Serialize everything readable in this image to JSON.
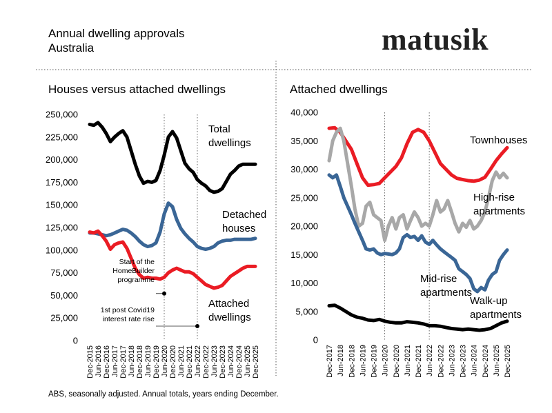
{
  "header": {
    "title_line1": "Annual dwelling approvals",
    "title_line2": "Australia",
    "brand": "matusik"
  },
  "footer": {
    "source": "ABS, seasonally adjusted.  Annual totals, years ending December."
  },
  "colors": {
    "black": "#000000",
    "blue": "#3a6696",
    "red": "#ea1c24",
    "grey": "#a8a8a8"
  },
  "chart_data": [
    {
      "type": "line",
      "title": "Houses versus attached dwellings",
      "ylim": [
        0,
        250000
      ],
      "yticks": [
        "0",
        "25,000",
        "50,000",
        "75,000",
        "100,000",
        "125,000",
        "150,000",
        "175,000",
        "200,000",
        "225,000",
        "250,000"
      ],
      "xlim": [
        2015.92,
        2025.92
      ],
      "xticks": [
        "Dec-2015",
        "Jun-2016",
        "Dec-2016",
        "Jun-2017",
        "Dec-2017",
        "Jun-2018",
        "Dec-2018",
        "Jun-2019",
        "Dec-2019",
        "Jun-2020",
        "Dec-2020",
        "Jun-2021",
        "Dec-2021",
        "Jun-2022",
        "Dec-2022",
        "Jun-2023",
        "Dec-2023",
        "Jun-2024",
        "Dec-2024",
        "Jun-2025",
        "Dec-2025"
      ],
      "vlines": [
        2020.42,
        2022.42
      ],
      "series": [
        {
          "name_lines": [
            "Total",
            "dwellings"
          ],
          "color": "#000000",
          "x": [
            2015.92,
            2016.17,
            2016.42,
            2016.67,
            2016.92,
            2017.17,
            2017.42,
            2017.67,
            2017.92,
            2018.17,
            2018.42,
            2018.67,
            2018.92,
            2019.17,
            2019.42,
            2019.67,
            2019.92,
            2020.17,
            2020.42,
            2020.67,
            2020.92,
            2021.17,
            2021.42,
            2021.67,
            2021.92,
            2022.17,
            2022.42,
            2022.67,
            2022.92,
            2023.17,
            2023.42,
            2023.67,
            2023.92,
            2024.17,
            2024.42,
            2024.67,
            2024.92,
            2025.17,
            2025.42,
            2025.67,
            2025.92
          ],
          "y": [
            239000,
            238000,
            241000,
            236000,
            229000,
            220000,
            225000,
            229000,
            232000,
            225000,
            210000,
            195000,
            182000,
            174000,
            176000,
            175000,
            177000,
            188000,
            205000,
            225000,
            231000,
            224000,
            210000,
            196000,
            190000,
            186000,
            178000,
            174000,
            171000,
            166000,
            164000,
            165000,
            168000,
            176000,
            184000,
            188000,
            193000,
            195000,
            195000,
            195000,
            195000
          ]
        },
        {
          "name_lines": [
            "Detached",
            "houses"
          ],
          "color": "#3a6696",
          "x": [
            2015.92,
            2016.17,
            2016.42,
            2016.67,
            2016.92,
            2017.17,
            2017.42,
            2017.67,
            2017.92,
            2018.17,
            2018.42,
            2018.67,
            2018.92,
            2019.17,
            2019.42,
            2019.67,
            2019.92,
            2020.17,
            2020.42,
            2020.67,
            2020.92,
            2021.17,
            2021.42,
            2021.67,
            2021.92,
            2022.17,
            2022.42,
            2022.67,
            2022.92,
            2023.17,
            2023.42,
            2023.67,
            2023.92,
            2024.17,
            2024.42,
            2024.67,
            2024.92,
            2025.17,
            2025.42,
            2025.67,
            2025.92
          ],
          "y": [
            119000,
            119000,
            118000,
            117000,
            116000,
            117000,
            119000,
            121000,
            123000,
            122000,
            119000,
            115000,
            110000,
            106000,
            104000,
            105000,
            108000,
            120000,
            140000,
            152000,
            148000,
            134000,
            124000,
            118000,
            113000,
            109000,
            104000,
            102000,
            101000,
            102000,
            104000,
            108000,
            110000,
            111000,
            111000,
            112000,
            112000,
            112000,
            112000,
            112000,
            113000
          ]
        },
        {
          "name_lines": [
            "Attached",
            "dwellings"
          ],
          "color": "#ea1c24",
          "x": [
            2015.92,
            2016.17,
            2016.42,
            2016.67,
            2016.92,
            2017.17,
            2017.42,
            2017.67,
            2017.92,
            2018.17,
            2018.42,
            2018.67,
            2018.92,
            2019.17,
            2019.42,
            2019.67,
            2019.92,
            2020.17,
            2020.42,
            2020.67,
            2020.92,
            2021.17,
            2021.42,
            2021.67,
            2021.92,
            2022.17,
            2022.42,
            2022.67,
            2022.92,
            2023.17,
            2023.42,
            2023.67,
            2023.92,
            2024.17,
            2024.42,
            2024.67,
            2024.92,
            2025.17,
            2025.42,
            2025.67,
            2025.92
          ],
          "y": [
            120000,
            119000,
            121000,
            116000,
            110000,
            101000,
            106000,
            108000,
            109000,
            102000,
            91000,
            80000,
            73000,
            69000,
            70000,
            69000,
            69000,
            68000,
            70000,
            75000,
            78000,
            80000,
            78000,
            76000,
            76000,
            74000,
            70000,
            66000,
            62000,
            60000,
            58000,
            59000,
            61000,
            66000,
            71000,
            74000,
            77000,
            80000,
            82000,
            82000,
            82000
          ]
        }
      ],
      "annotations": [
        {
          "lines": [
            "Start of the",
            "HomeBuilder",
            "programme"
          ],
          "x": 2020.42,
          "y": 52000
        },
        {
          "lines": [
            "1st post Covid19",
            "interest rate rise"
          ],
          "x": 2022.42,
          "y": 16000
        }
      ]
    },
    {
      "type": "line",
      "title": "Attached dwellings",
      "ylim": [
        0,
        40000
      ],
      "yticks": [
        "0",
        "5,000",
        "10,000",
        "15,000",
        "20,000",
        "25,000",
        "30,000",
        "35,000",
        "40,000"
      ],
      "xlim": [
        2017.92,
        2025.92
      ],
      "xticks": [
        "Dec-2017",
        "Jun-2018",
        "Dec-2018",
        "Jun-2019",
        "Dec-2019",
        "Jun-2020",
        "Dec-2020",
        "Jun-2021",
        "Dec-2021",
        "Jun-2022",
        "Dec-2022",
        "Jun-2023",
        "Dec-2023",
        "Jun-2024",
        "Dec-2024",
        "Jun-2025",
        "Dec-2025"
      ],
      "vlines": [
        2020.42,
        2022.42
      ],
      "series": [
        {
          "name_lines": [
            "Townhouses"
          ],
          "color": "#ea1c24",
          "x": [
            2017.92,
            2018.17,
            2018.42,
            2018.67,
            2018.92,
            2019.17,
            2019.42,
            2019.67,
            2019.92,
            2020.17,
            2020.42,
            2020.67,
            2020.92,
            2021.17,
            2021.42,
            2021.67,
            2021.92,
            2022.17,
            2022.42,
            2022.67,
            2022.92,
            2023.17,
            2023.42,
            2023.67,
            2023.92,
            2024.17,
            2024.42,
            2024.67,
            2024.92,
            2025.17,
            2025.42,
            2025.67,
            2025.92
          ],
          "y": [
            37200,
            37300,
            36500,
            35000,
            33500,
            31000,
            28500,
            27200,
            27300,
            27500,
            28500,
            29500,
            30500,
            32000,
            34500,
            36500,
            37000,
            36500,
            35000,
            33000,
            31000,
            30000,
            29000,
            28400,
            28200,
            28000,
            27900,
            28100,
            28600,
            30000,
            31500,
            32700,
            33800
          ]
        },
        {
          "name_lines": [
            "High-rise",
            "apartments"
          ],
          "color": "#a8a8a8",
          "x": [
            2017.92,
            2018.08,
            2018.25,
            2018.42,
            2018.58,
            2018.75,
            2018.92,
            2019.08,
            2019.25,
            2019.42,
            2019.58,
            2019.75,
            2019.92,
            2020.08,
            2020.25,
            2020.42,
            2020.58,
            2020.75,
            2020.92,
            2021.08,
            2021.25,
            2021.42,
            2021.58,
            2021.75,
            2021.92,
            2022.08,
            2022.25,
            2022.42,
            2022.58,
            2022.75,
            2022.92,
            2023.08,
            2023.25,
            2023.42,
            2023.58,
            2023.75,
            2023.92,
            2024.08,
            2024.25,
            2024.42,
            2024.58,
            2024.75,
            2024.92,
            2025.08,
            2025.25,
            2025.42,
            2025.58,
            2025.75,
            2025.92
          ],
          "y": [
            31500,
            35000,
            36500,
            37200,
            35000,
            31000,
            27000,
            23000,
            20000,
            20500,
            23500,
            24200,
            22000,
            21500,
            21000,
            17500,
            20000,
            21500,
            19500,
            21500,
            22000,
            19500,
            21000,
            22500,
            21500,
            20000,
            20500,
            20000,
            22000,
            24500,
            22500,
            23000,
            24500,
            22500,
            20500,
            19000,
            20500,
            19800,
            21000,
            19500,
            20000,
            21000,
            22500,
            25000,
            28000,
            29500,
            28500,
            29300,
            28500
          ]
        },
        {
          "name_lines": [
            "Mid-rise",
            "apartments"
          ],
          "color": "#3a6696",
          "x": [
            2017.92,
            2018.08,
            2018.25,
            2018.42,
            2018.58,
            2018.75,
            2018.92,
            2019.08,
            2019.25,
            2019.42,
            2019.58,
            2019.75,
            2019.92,
            2020.08,
            2020.25,
            2020.42,
            2020.58,
            2020.75,
            2020.92,
            2021.08,
            2021.25,
            2021.42,
            2021.58,
            2021.75,
            2021.92,
            2022.08,
            2022.25,
            2022.42,
            2022.58,
            2022.75,
            2022.92,
            2023.08,
            2023.25,
            2023.42,
            2023.58,
            2023.75,
            2023.92,
            2024.08,
            2024.25,
            2024.42,
            2024.58,
            2024.75,
            2024.92,
            2025.08,
            2025.25,
            2025.42,
            2025.58,
            2025.75,
            2025.92
          ],
          "y": [
            29000,
            28500,
            29000,
            27000,
            25000,
            23500,
            22000,
            20500,
            19000,
            17500,
            16000,
            15800,
            16000,
            15300,
            15000,
            15200,
            15100,
            15000,
            15300,
            16000,
            18000,
            18500,
            18000,
            18200,
            17500,
            18300,
            17200,
            16800,
            17500,
            16700,
            16000,
            15500,
            15000,
            14500,
            14000,
            12500,
            12000,
            11500,
            10800,
            9000,
            8500,
            9200,
            8800,
            10500,
            11500,
            12000,
            14000,
            15000,
            15800
          ]
        },
        {
          "name_lines": [
            "Walk-up",
            "apartments"
          ],
          "color": "#000000",
          "x": [
            2017.92,
            2018.17,
            2018.42,
            2018.67,
            2018.92,
            2019.17,
            2019.42,
            2019.67,
            2019.92,
            2020.17,
            2020.42,
            2020.67,
            2020.92,
            2021.17,
            2021.42,
            2021.67,
            2021.92,
            2022.17,
            2022.42,
            2022.67,
            2022.92,
            2023.17,
            2023.42,
            2023.67,
            2023.92,
            2024.17,
            2024.42,
            2024.67,
            2024.92,
            2025.17,
            2025.42,
            2025.67,
            2025.92
          ],
          "y": [
            6000,
            6100,
            5600,
            5000,
            4400,
            4000,
            3800,
            3500,
            3400,
            3600,
            3300,
            3100,
            3000,
            3000,
            3200,
            3100,
            3000,
            2800,
            2500,
            2500,
            2400,
            2200,
            2000,
            1900,
            1800,
            1900,
            1800,
            1700,
            1800,
            2000,
            2500,
            3000,
            3300
          ]
        }
      ]
    }
  ]
}
